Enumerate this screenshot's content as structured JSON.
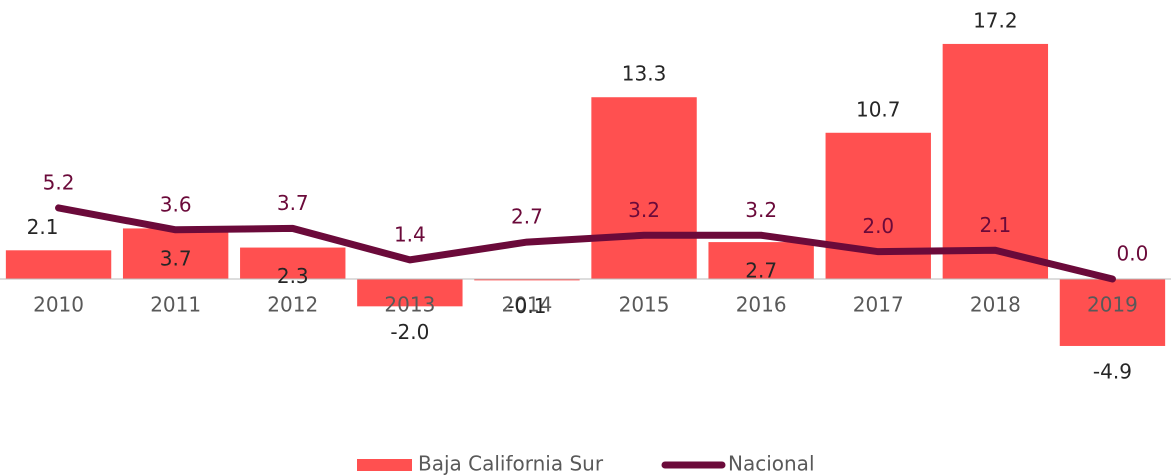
{
  "chart_data": {
    "type": "bar-line",
    "categories": [
      "2010",
      "2011",
      "2012",
      "2013",
      "2014",
      "2015",
      "2016",
      "2017",
      "2018",
      "2019"
    ],
    "series": [
      {
        "name": "Baja California Sur",
        "type": "bar",
        "color": "#ff5050",
        "values": [
          2.1,
          3.7,
          2.3,
          -2.0,
          -0.1,
          13.3,
          2.7,
          10.7,
          17.2,
          -4.9
        ],
        "value_labels": [
          "2.1",
          "3.7",
          "2.3",
          "-2.0",
          "-0.1",
          "13.3",
          "2.7",
          "10.7",
          "17.2",
          "-4.9"
        ]
      },
      {
        "name": "Nacional",
        "type": "line",
        "color": "#6b0a3a",
        "values": [
          5.2,
          3.6,
          3.7,
          1.4,
          2.7,
          3.2,
          3.2,
          2.0,
          2.1,
          0.0
        ],
        "value_labels": [
          "5.2",
          "3.6",
          "3.7",
          "1.4",
          "2.7",
          "3.2",
          "3.2",
          "2.0",
          "2.1",
          "0.0"
        ]
      }
    ],
    "ylim": [
      -6,
      18
    ],
    "legend": "bottom"
  }
}
